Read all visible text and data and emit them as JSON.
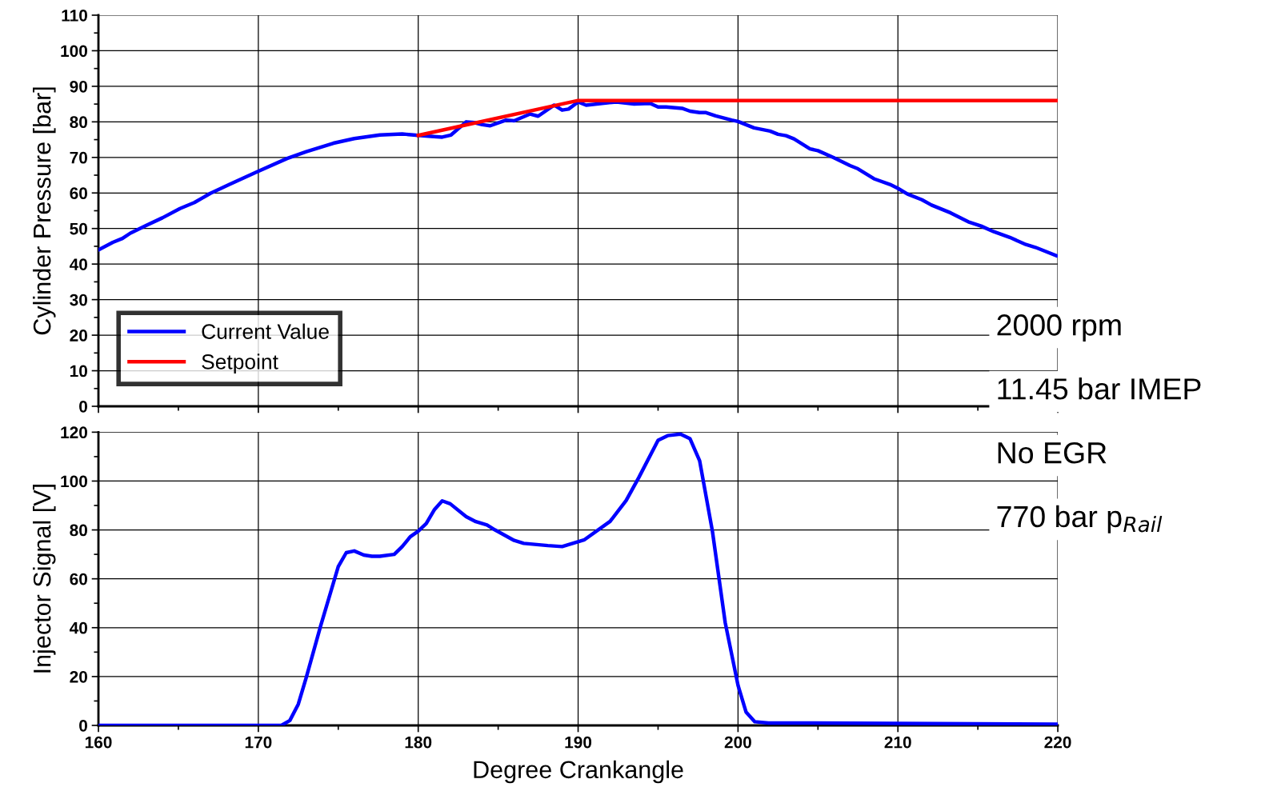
{
  "chart_data": [
    {
      "type": "line",
      "ylabel": "Cylinder Pressure [bar]",
      "xlim": [
        160,
        220
      ],
      "xticks": [
        160,
        170,
        180,
        190,
        200,
        210,
        220
      ],
      "ylim": [
        0,
        110
      ],
      "yticks": [
        0,
        10,
        20,
        30,
        40,
        50,
        60,
        70,
        80,
        90,
        100,
        110
      ],
      "tick_labels": "y",
      "grid": true,
      "legend": "bottom left",
      "annotations": [
        "2000 rpm",
        "11.45 bar IMEP",
        "No EGR",
        "770 bar p$_{Rail}$"
      ],
      "series": [
        {
          "name": "Current Value",
          "color": "#0000ff",
          "x": [
            160,
            160.9,
            161.5,
            162,
            163,
            164,
            165.1,
            166,
            167,
            168.2,
            169.9,
            171.8,
            173,
            174.7,
            176,
            177.6,
            179,
            180,
            180.8,
            181.5,
            182.05,
            183,
            183.5,
            184,
            184.5,
            185.5,
            186,
            187,
            187.5,
            188.5,
            189,
            189.4,
            190,
            190.5,
            192.4,
            193.5,
            194.5,
            195,
            195.5,
            196.5,
            197,
            197.6,
            198,
            198.6,
            199.6,
            200,
            201,
            202,
            202.5,
            203,
            203.5,
            204.5,
            205,
            206,
            207,
            207.5,
            208.5,
            209.5,
            210,
            210.6,
            211.5,
            212.1,
            213.3,
            214.4,
            215.2,
            216,
            217,
            218,
            218.6,
            219.9
          ],
          "values": [
            44,
            46.1,
            47.2,
            48.7,
            50.9,
            53,
            55.6,
            57.3,
            59.9,
            62.4,
            65.9,
            69.7,
            71.6,
            74,
            75.3,
            76.3,
            76.6,
            76.2,
            75.9,
            75.7,
            76.3,
            80,
            79.8,
            79.2,
            78.9,
            80.5,
            80.3,
            82.2,
            81.6,
            84.7,
            83.3,
            83.6,
            85.6,
            84.7,
            85.6,
            85,
            85.2,
            84.2,
            84.2,
            83.8,
            83,
            82.6,
            82.6,
            81.7,
            80.5,
            80.1,
            78.3,
            77.4,
            76.5,
            76.1,
            75.2,
            72.4,
            71.9,
            69.9,
            67.7,
            66.8,
            64,
            62.4,
            61.3,
            59.7,
            58.1,
            56.6,
            54.4,
            51.9,
            50.7,
            49.1,
            47.5,
            45.5,
            44.7,
            42.4
          ]
        },
        {
          "name": "Setpoint",
          "color": "#ff0000",
          "x": [
            180,
            190,
            220
          ],
          "values": [
            76.2,
            86,
            86
          ]
        }
      ]
    },
    {
      "type": "line",
      "xlabel": "Degree Crankangle",
      "ylabel": "Injector Signal [V]",
      "xlim": [
        160,
        220
      ],
      "xticks": [
        160,
        170,
        180,
        190,
        200,
        210,
        220
      ],
      "ylim": [
        0,
        120
      ],
      "yticks": [
        0,
        20,
        40,
        60,
        80,
        100,
        120
      ],
      "grid": true,
      "series": [
        {
          "color": "#0000ff",
          "x": [
            160,
            171.44,
            171.97,
            172.5,
            173,
            173.9,
            175,
            175.5,
            176,
            176.6,
            177.1,
            177.6,
            178.5,
            179,
            179.5,
            180,
            180.5,
            181,
            181.5,
            182,
            183,
            183.6,
            184.3,
            184.8,
            186,
            186.6,
            188.1,
            189,
            190.4,
            192,
            193,
            193.8,
            195,
            195.6,
            196.4,
            197,
            197.6,
            198.4,
            199.2,
            200,
            200.5,
            201.05,
            201.9,
            204.7,
            220
          ],
          "values": [
            0,
            0,
            2,
            8.7,
            19.7,
            40.8,
            65,
            70.7,
            71.4,
            69.7,
            69.2,
            69.2,
            70,
            73.2,
            77.2,
            79.5,
            82.6,
            88.2,
            91.9,
            90.7,
            85.4,
            83.4,
            82,
            80,
            75.7,
            74.5,
            73.6,
            73.2,
            76,
            83.5,
            92,
            101.5,
            116.7,
            118.6,
            119.2,
            117.3,
            108.3,
            79.4,
            42,
            16.4,
            5.5,
            1.5,
            1,
            1,
            0.5
          ]
        }
      ]
    }
  ]
}
